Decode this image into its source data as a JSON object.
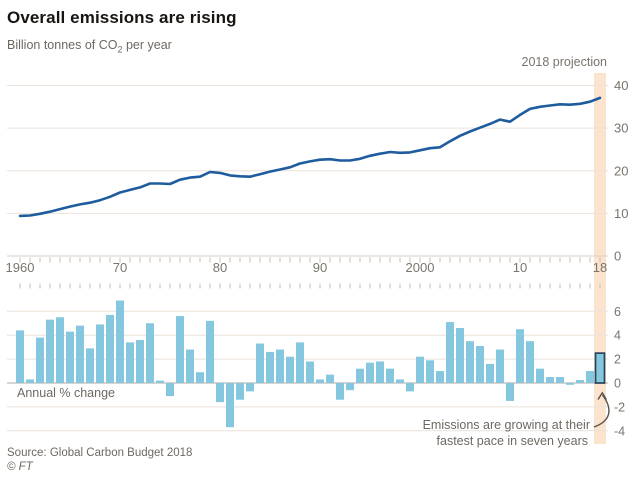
{
  "header": {
    "title": "Overall emissions are rising",
    "subtitle_prefix": "Billion tonnes of CO",
    "subtitle_sub": "2",
    "subtitle_suffix": " per year"
  },
  "annotations": {
    "projection_label": "2018 projection",
    "bar_panel_label": "Annual % change",
    "note_line1": "Emissions are growing at their",
    "note_line2": "fastest pace in seven years"
  },
  "footer": {
    "source": "Source: Global Carbon Budget 2018",
    "copyright": "© FT"
  },
  "colors": {
    "line": "#1e5c9e",
    "bar": "#84c7de",
    "projection_band": "#fce3cd",
    "highlight_outline": "#27455a",
    "grid": "#ebe2d9",
    "axis_zero": "#b3a99f",
    "tick": "#c8bdb2",
    "arrow": "#55504a"
  },
  "chart_data": [
    {
      "type": "line",
      "title": "Overall emissions are rising",
      "ylabel": "Billion tonnes of CO2 per year",
      "start_year": 1960,
      "ylim": [
        0,
        40
      ],
      "yticks": [
        0,
        10,
        20,
        30,
        40
      ],
      "xticks": [
        {
          "year": 1960,
          "label": "1960"
        },
        {
          "year": 1970,
          "label": "70"
        },
        {
          "year": 1980,
          "label": "80"
        },
        {
          "year": 1990,
          "label": "90"
        },
        {
          "year": 2000,
          "label": "2000"
        },
        {
          "year": 2010,
          "label": "10"
        },
        {
          "year": 2018,
          "label": "18"
        }
      ],
      "values": [
        9.4,
        9.5,
        9.9,
        10.4,
        11.0,
        11.6,
        12.1,
        12.5,
        13.1,
        13.9,
        14.9,
        15.5,
        16.1,
        17.0,
        17.0,
        16.9,
        17.9,
        18.4,
        18.6,
        19.7,
        19.5,
        18.9,
        18.7,
        18.6,
        19.2,
        19.8,
        20.3,
        20.8,
        21.7,
        22.2,
        22.6,
        22.7,
        22.4,
        22.4,
        22.8,
        23.5,
        24.0,
        24.4,
        24.2,
        24.3,
        24.8,
        25.3,
        25.5,
        26.9,
        28.2,
        29.2,
        30.1,
        31.0,
        32.0,
        31.5,
        33.1,
        34.5,
        35.0,
        35.3,
        35.6,
        35.5,
        35.7,
        36.2,
        37.1
      ],
      "projection_year": 2018
    },
    {
      "type": "bar",
      "title": "Annual % change",
      "start_year": 1960,
      "ylim": [
        -4,
        6
      ],
      "yticks": [
        6,
        4,
        2,
        0,
        -2,
        -4
      ],
      "values": [
        4.4,
        0.3,
        3.8,
        5.3,
        5.5,
        4.3,
        4.8,
        2.9,
        4.9,
        5.7,
        6.9,
        3.4,
        3.6,
        5.0,
        0.2,
        -1.1,
        5.6,
        2.8,
        0.9,
        5.2,
        -1.6,
        -3.7,
        -1.4,
        -0.7,
        3.3,
        2.6,
        2.8,
        2.2,
        3.4,
        1.8,
        0.3,
        0.7,
        -1.4,
        -0.6,
        1.2,
        1.7,
        1.8,
        1.2,
        0.3,
        -0.7,
        2.2,
        1.9,
        1.0,
        5.1,
        4.6,
        3.5,
        3.1,
        1.6,
        2.8,
        -1.5,
        4.5,
        3.5,
        1.2,
        0.5,
        0.5,
        -0.15,
        0.25,
        1.0,
        2.5
      ],
      "highlight_year": 2018
    }
  ]
}
